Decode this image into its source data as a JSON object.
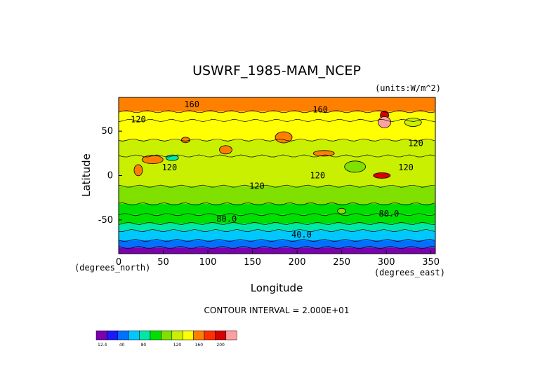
{
  "chart_data": {
    "type": "heatmap",
    "title": "USWRF_1985-MAM_NCEP",
    "units_label": "(units:W/m^2)",
    "xlabel": "Longitude",
    "ylabel": "Latitude",
    "x_unit_label": "(degrees_east)",
    "y_unit_label": "(degrees_north)",
    "xlim": [
      0,
      355
    ],
    "ylim": [
      -88,
      88
    ],
    "x_ticks": [
      0,
      50,
      100,
      150,
      200,
      250,
      300,
      350
    ],
    "y_ticks": [
      -50,
      0,
      50
    ],
    "x_tick_labels": [
      "0",
      "50",
      "100",
      "150",
      "200",
      "250",
      "300",
      "350"
    ],
    "y_tick_labels": [
      "-50",
      "0",
      "50"
    ],
    "contour_interval_text": "CONTOUR INTERVAL = 2.000E+01",
    "contour_labels": [
      {
        "text": "160",
        "lon": 82,
        "lat": 77
      },
      {
        "text": "160",
        "lon": 226,
        "lat": 71
      },
      {
        "text": "120",
        "lon": 22,
        "lat": 60
      },
      {
        "text": "120",
        "lon": 57,
        "lat": 6
      },
      {
        "text": "120",
        "lon": 155,
        "lat": -15
      },
      {
        "text": "120",
        "lon": 223,
        "lat": -3
      },
      {
        "text": "120",
        "lon": 322,
        "lat": 6
      },
      {
        "text": "120",
        "lon": 333,
        "lat": 33
      },
      {
        "text": "80.0",
        "lon": 121,
        "lat": -52
      },
      {
        "text": "80.0",
        "lon": 303,
        "lat": -46
      },
      {
        "text": "40.0",
        "lon": 205,
        "lat": -70
      }
    ],
    "colorbar": {
      "levels": [
        "12.4",
        "40",
        "80",
        "120",
        "160",
        "200"
      ],
      "colors": [
        "#7a00b0",
        "#1a1aff",
        "#0070ff",
        "#00c8ff",
        "#00e8a8",
        "#00e000",
        "#80e000",
        "#c8f000",
        "#ffff00",
        "#ff8000",
        "#ff3000",
        "#d80000",
        "#ffa0a0"
      ]
    },
    "zonal_bands": [
      {
        "lat_min": -88,
        "lat_max": -81,
        "value": 12
      },
      {
        "lat_min": -81,
        "lat_max": -73,
        "value": 30
      },
      {
        "lat_min": -73,
        "lat_max": -62,
        "value": 50
      },
      {
        "lat_min": -62,
        "lat_max": -54,
        "value": 70
      },
      {
        "lat_min": -54,
        "lat_max": -44,
        "value": 90
      },
      {
        "lat_min": -44,
        "lat_max": -32,
        "value": 105
      },
      {
        "lat_min": -32,
        "lat_max": -12,
        "value": 118
      },
      {
        "lat_min": -12,
        "lat_max": 22,
        "value": 125
      },
      {
        "lat_min": 22,
        "lat_max": 40,
        "value": 135
      },
      {
        "lat_min": 40,
        "lat_max": 62,
        "value": 140
      },
      {
        "lat_min": 62,
        "lat_max": 72,
        "value": 150
      },
      {
        "lat_min": 72,
        "lat_max": 88,
        "value": 165
      }
    ],
    "regional_anomalies": [
      {
        "lon": 75,
        "lat": 40,
        "value": 175
      },
      {
        "lon": 120,
        "lat": 29,
        "value": 170
      },
      {
        "lon": 185,
        "lat": 43,
        "value": 165
      },
      {
        "lon": 230,
        "lat": 25,
        "value": 175
      },
      {
        "lon": 298,
        "lat": 68,
        "value": 190
      },
      {
        "lon": 298,
        "lat": 60,
        "value": 210
      },
      {
        "lon": 295,
        "lat": 0,
        "value": 190
      },
      {
        "lon": 38,
        "lat": 18,
        "value": 165
      },
      {
        "lon": 22,
        "lat": 6,
        "value": 170
      },
      {
        "lon": 60,
        "lat": 20,
        "value": 80
      },
      {
        "lon": 330,
        "lat": 60,
        "value": 125
      },
      {
        "lon": 265,
        "lat": 10,
        "value": 115
      },
      {
        "lon": 250,
        "lat": -40,
        "value": 110
      }
    ]
  }
}
